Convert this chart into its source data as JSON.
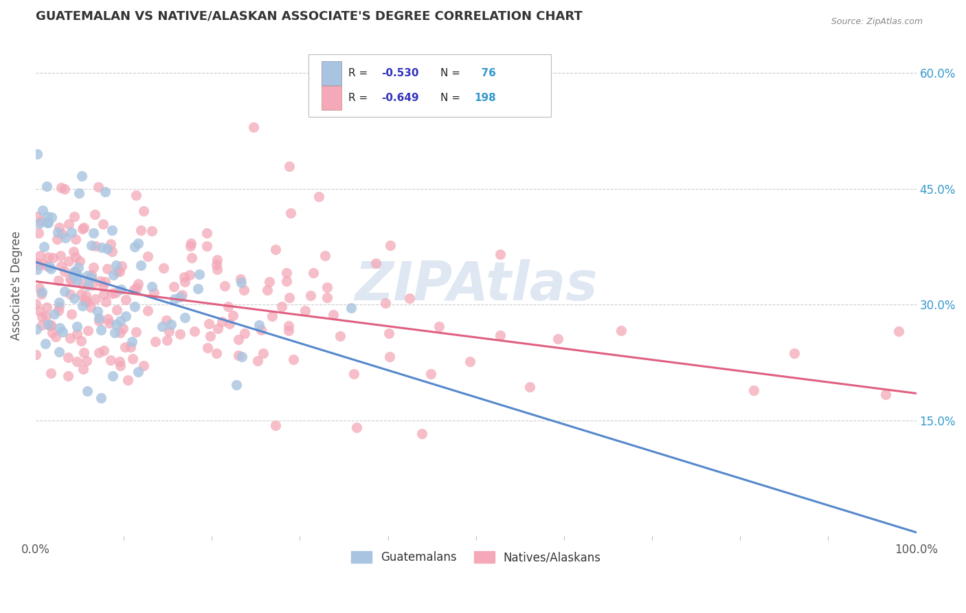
{
  "title": "GUATEMALAN VS NATIVE/ALASKAN ASSOCIATE'S DEGREE CORRELATION CHART",
  "source": "Source: ZipAtlas.com",
  "xlabel": "",
  "ylabel": "Associate's Degree",
  "legend_label1": "Guatemalans",
  "legend_label2": "Natives/Alaskans",
  "R1": -0.53,
  "N1": 76,
  "R2": -0.649,
  "N2": 198,
  "color1": "#a8c4e0",
  "color2": "#f4a8b8",
  "line_color1": "#5588cc",
  "line_color2": "#e06080",
  "bg_color": "#ffffff",
  "grid_color": "#cccccc",
  "watermark": "ZIPAtlas",
  "xlim": [
    0,
    100
  ],
  "ylim": [
    0,
    65
  ],
  "yticks": [
    15,
    30,
    45,
    60
  ],
  "xticks_labels": [
    "0.0%",
    "100.0%"
  ],
  "xticks_pos": [
    0,
    100
  ],
  "title_color": "#333333",
  "axis_label_color": "#555555",
  "tick_color": "#555555",
  "legend_R_color": "#3333bb",
  "legend_N_color": "#3399cc",
  "line1_start_y": 35.5,
  "line1_end_y": 0.5,
  "line2_start_y": 33.0,
  "line2_end_y": 18.5,
  "watermark_color": "#c8d8ea"
}
